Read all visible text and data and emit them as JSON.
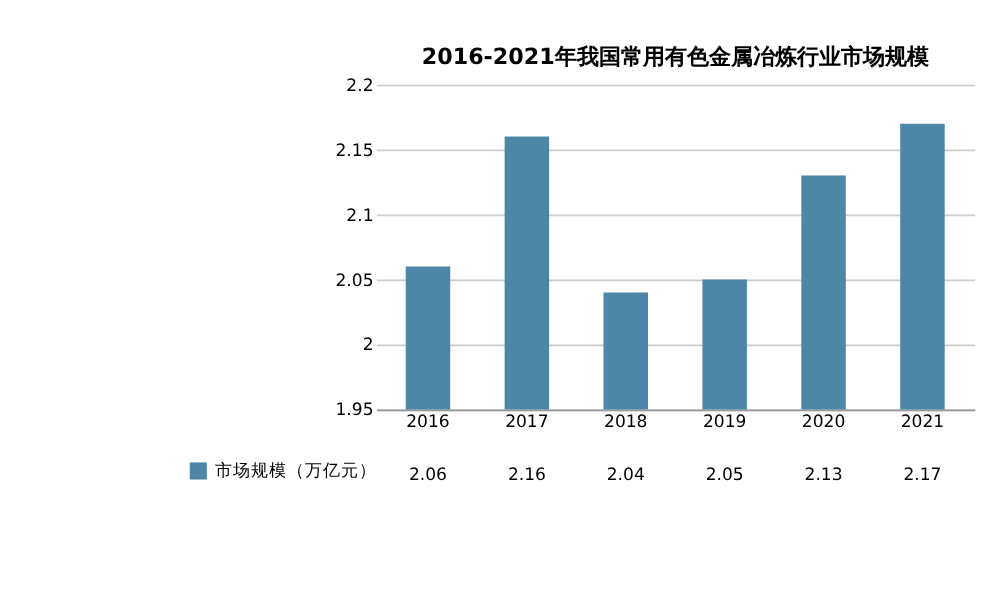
{
  "chart_data": {
    "type": "bar",
    "title": "2016-2021年我国常用有色金属冶炼行业市场规模",
    "categories": [
      "2016",
      "2017",
      "2018",
      "2019",
      "2020",
      "2021"
    ],
    "series": [
      {
        "name": "市场规模（万亿元）",
        "color": "#4e86a8",
        "values": [
          2.06,
          2.16,
          2.04,
          2.05,
          2.13,
          2.17
        ]
      }
    ],
    "ylim": [
      1.95,
      2.2
    ],
    "yticks": [
      1.95,
      2,
      2.05,
      2.1,
      2.15,
      2.2
    ],
    "grid": "y",
    "data_labels": true,
    "legend": "bottom left"
  }
}
